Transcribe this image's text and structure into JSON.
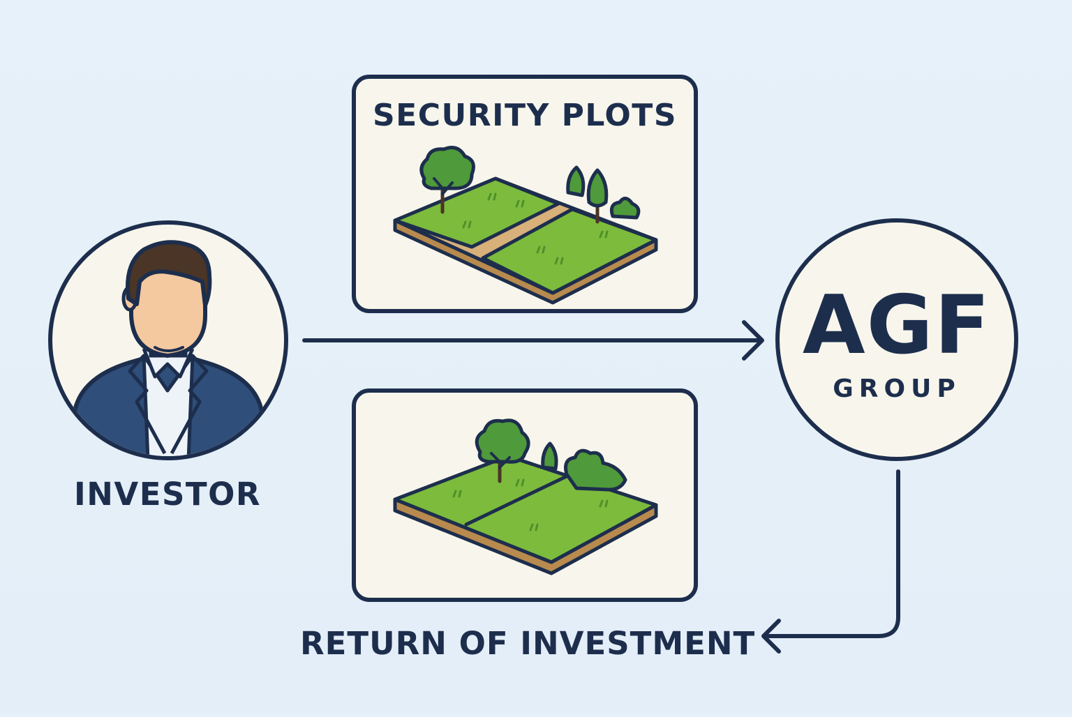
{
  "diagram": {
    "security_card": {
      "title": "SECURITY PLOTS"
    },
    "investor": {
      "label": "INVESTOR"
    },
    "agf": {
      "logo": "AGF",
      "tagline": "GROUP"
    },
    "return": {
      "label": "RETURN OF INVESTMENT"
    }
  },
  "colors": {
    "navy": "#1d2e4d",
    "card_fill": "#f8f6ec",
    "grass": "#7dbb3c",
    "soil": "#b88a4e",
    "tree": "#4f9a3a",
    "suit": "#2f4e79",
    "skin": "#f4c9a0",
    "hair": "#4a3527"
  },
  "icons": [
    "investor-avatar",
    "land-plot-illustration",
    "tree-icon",
    "arrow-right",
    "arrow-left"
  ]
}
